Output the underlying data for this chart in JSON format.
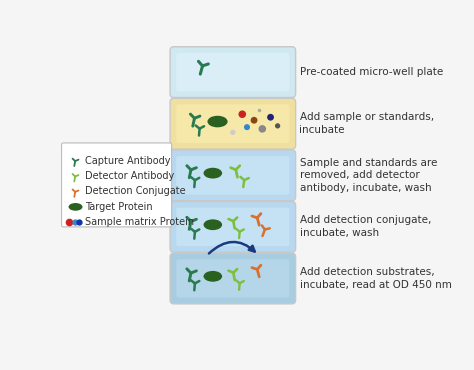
{
  "background_color": "#f5f5f5",
  "steps": [
    "Pre-coated micro-well plate",
    "Add sample or standards,\nincubate",
    "Sample and standards are\nremoved, add detector\nantibody, incubate, wash",
    "Add detection conjugate,\nincubate, wash",
    "Add detection substrates,\nincubate, read at OD 450 nm"
  ],
  "plate_colors": [
    "#d0e8f0",
    "#f0e0a0",
    "#b8d8f0",
    "#b8d8f0",
    "#a8cce0"
  ],
  "plate_border_color": "#c8c8c8",
  "plate_inner_colors": [
    "#daeef8",
    "#f5e8a8",
    "#c5e2f5",
    "#c5e2f5",
    "#b5d5e8"
  ],
  "text_color": "#333333",
  "step_fontsize": 7.5,
  "legend_fontsize": 7.0,
  "capture_ab_color": "#2a7a50",
  "detector_ab_color": "#7dc040",
  "conjugate_color": "#d97030",
  "target_protein_color": "#2a6020",
  "arrow_color": "#1a3a80"
}
